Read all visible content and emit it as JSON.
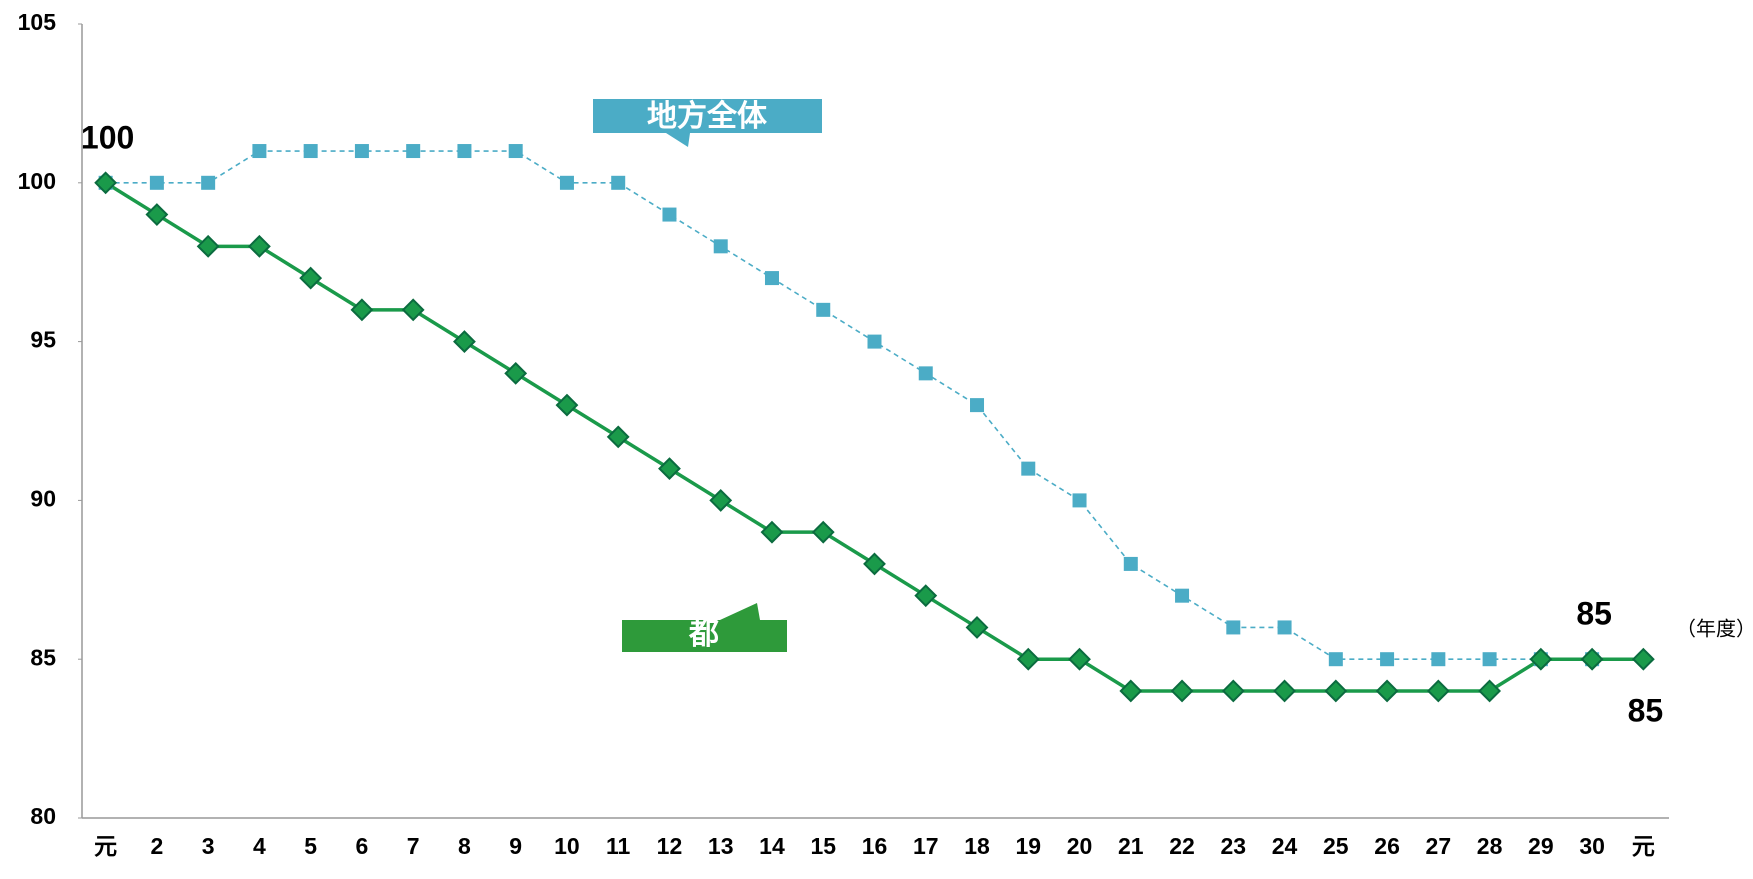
{
  "chart_data": {
    "type": "line",
    "categories": [
      "元",
      "2",
      "3",
      "4",
      "5",
      "6",
      "7",
      "8",
      "9",
      "10",
      "11",
      "12",
      "13",
      "14",
      "15",
      "16",
      "17",
      "18",
      "19",
      "20",
      "21",
      "22",
      "23",
      "24",
      "25",
      "26",
      "27",
      "28",
      "29",
      "30",
      "元"
    ],
    "x_label": "（年度）",
    "ylim": [
      80,
      105
    ],
    "yticks": [
      80,
      85,
      90,
      95,
      100,
      105
    ],
    "grid": false,
    "series": [
      {
        "name": "地方全体",
        "color": "#4bacc6",
        "marker": "square",
        "dashed": true,
        "values": [
          100,
          100,
          100,
          101,
          101,
          101,
          101,
          101,
          101,
          100,
          100,
          99,
          98,
          97,
          96,
          95,
          94,
          93,
          91,
          90,
          88,
          87,
          86,
          86,
          85,
          85,
          85,
          85,
          85,
          85,
          null
        ],
        "value_labels": [
          "100",
          null,
          null,
          null,
          null,
          null,
          null,
          null,
          null,
          null,
          null,
          null,
          null,
          null,
          null,
          null,
          null,
          null,
          null,
          null,
          null,
          null,
          null,
          null,
          null,
          null,
          null,
          null,
          null,
          "85",
          null
        ]
      },
      {
        "name": "都",
        "color": "#1a9a4a",
        "marker": "diamond",
        "dashed": false,
        "values": [
          100,
          99,
          98,
          98,
          97,
          96,
          96,
          95,
          94,
          93,
          92,
          91,
          90,
          89,
          89,
          88,
          87,
          86,
          85,
          85,
          84,
          84,
          84,
          84,
          84,
          84,
          84,
          84,
          85,
          85,
          85
        ],
        "value_labels": [
          null,
          null,
          null,
          null,
          null,
          null,
          null,
          null,
          null,
          null,
          null,
          null,
          null,
          null,
          null,
          null,
          null,
          null,
          null,
          null,
          null,
          null,
          null,
          null,
          null,
          null,
          null,
          null,
          null,
          null,
          "85"
        ]
      }
    ]
  }
}
